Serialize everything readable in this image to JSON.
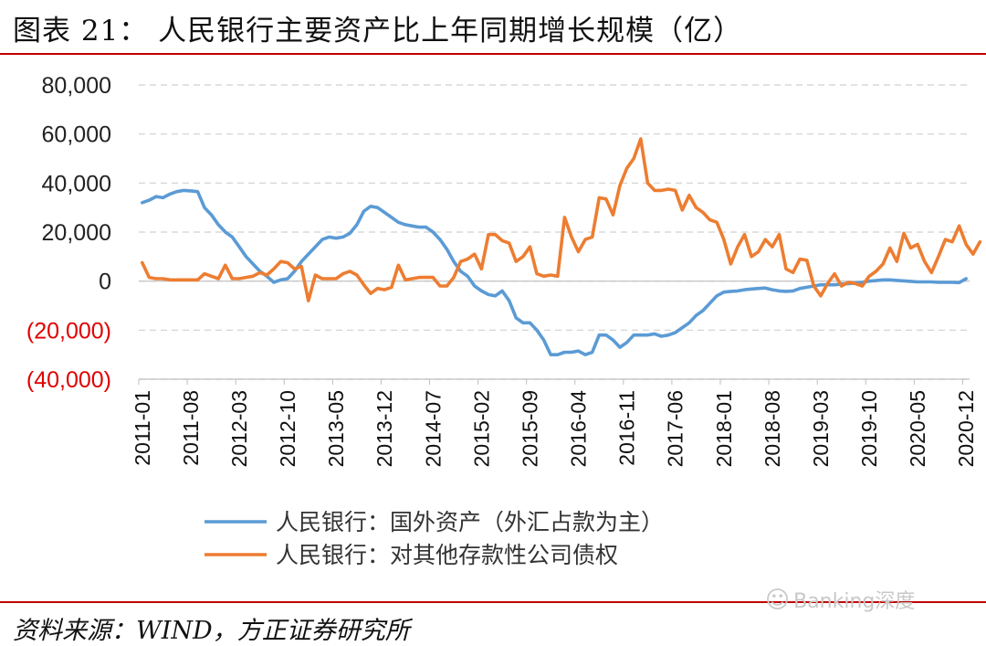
{
  "header": {
    "title": "图表 21：  人民银行主要资产比上年同期增长规模（亿）"
  },
  "footer": {
    "source": "资料来源：WIND，方正证券研究所",
    "watermark": "Banking深度"
  },
  "chart_data": {
    "type": "line",
    "title": "图表 21：  人民银行主要资产比上年同期增长规模（亿）",
    "ylim": [
      -40000,
      80000
    ],
    "y_ticks": [
      80000,
      60000,
      40000,
      20000,
      0,
      -20000,
      -40000
    ],
    "y_tick_labels": [
      "80,000",
      "60,000",
      "40,000",
      "20,000",
      "0",
      "(20,000)",
      "(40,000)"
    ],
    "negative_tick_color": "#e00000",
    "grid": "horizontal-dashed",
    "legend_position": "bottom",
    "x_start": "2011-01",
    "x_end": "2021-02",
    "x_tick_labels": [
      "2011-01",
      "2011-08",
      "2012-03",
      "2012-10",
      "2013-05",
      "2013-12",
      "2014-07",
      "2015-02",
      "2015-09",
      "2016-04",
      "2016-11",
      "2017-06",
      "2018-01",
      "2018-08",
      "2019-03",
      "2019-10",
      "2020-05",
      "2020-12"
    ],
    "series": [
      {
        "name": "人民银行：国外资产（外汇占款为主）",
        "color": "#5b9bd5",
        "values": [
          32000,
          33000,
          34500,
          34000,
          35500,
          36500,
          37000,
          36800,
          36500,
          30000,
          27000,
          23000,
          20000,
          18000,
          14000,
          10000,
          7000,
          4000,
          2000,
          -500,
          500,
          1000,
          4000,
          8000,
          11000,
          14000,
          17000,
          18000,
          17500,
          18000,
          19500,
          23000,
          28500,
          30500,
          30000,
          28000,
          26000,
          24000,
          23000,
          22500,
          22000,
          22000,
          20000,
          17000,
          13000,
          8000,
          4000,
          2000,
          -2000,
          -4000,
          -5500,
          -6000,
          -4000,
          -8000,
          -15000,
          -17000,
          -17000,
          -20000,
          -24000,
          -30000,
          -30000,
          -29000,
          -29000,
          -28500,
          -30000,
          -29000,
          -22000,
          -22000,
          -24000,
          -27000,
          -25000,
          -22000,
          -22000,
          -22000,
          -21500,
          -22500,
          -22000,
          -21000,
          -19000,
          -17000,
          -14000,
          -12000,
          -9000,
          -6000,
          -4500,
          -4200,
          -4000,
          -3500,
          -3200,
          -3000,
          -2800,
          -3500,
          -4000,
          -4200,
          -4000,
          -3000,
          -2500,
          -2000,
          -1500,
          -1500,
          -1500,
          -1200,
          -1000,
          -800,
          -500,
          0,
          200,
          500,
          500,
          300,
          100,
          -100,
          -300,
          -300,
          -300,
          -500,
          -500,
          -500,
          -600,
          1000
        ]
      },
      {
        "name": "人民银行：对其他存款性公司债权",
        "color": "#ed7d31",
        "values": [
          7500,
          1500,
          1000,
          1000,
          500,
          500,
          500,
          500,
          500,
          3000,
          2000,
          1000,
          6500,
          1000,
          1000,
          1500,
          2000,
          3500,
          2500,
          5000,
          8000,
          7500,
          5000,
          6000,
          -8000,
          2500,
          1000,
          1000,
          1000,
          3000,
          4000,
          2500,
          -1500,
          -5000,
          -3000,
          -3500,
          -2500,
          6500,
          500,
          1000,
          1500,
          1500,
          1500,
          -2000,
          -2000,
          1500,
          8000,
          9000,
          11000,
          5000,
          19000,
          19000,
          16500,
          15500,
          8000,
          10000,
          14000,
          3000,
          2000,
          2500,
          2000,
          26000,
          18000,
          12000,
          17000,
          18000,
          34000,
          33500,
          27000,
          39000,
          46000,
          50000,
          58000,
          40000,
          37000,
          37000,
          37500,
          37000,
          29000,
          35000,
          30000,
          28000,
          25000,
          24000,
          17000,
          7000,
          14000,
          19000,
          10000,
          12000,
          17000,
          14000,
          19000,
          5000,
          3500,
          9000,
          8500,
          -2000,
          -6000,
          -1000,
          3000,
          -2000,
          -500,
          -1000,
          -2000,
          2000,
          4000,
          7000,
          13500,
          8000,
          19500,
          13500,
          15000,
          8000,
          3500,
          10000,
          17000,
          16000,
          22500,
          15000,
          11000,
          16000
        ]
      }
    ]
  }
}
